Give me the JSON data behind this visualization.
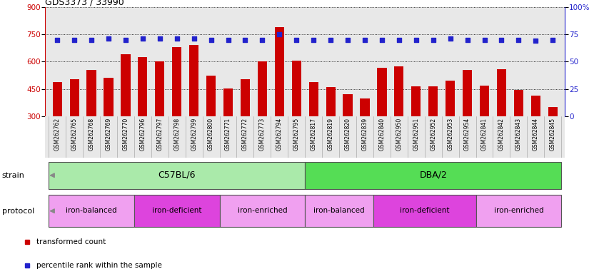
{
  "title": "GDS3373 / 33990",
  "samples": [
    "GSM262762",
    "GSM262765",
    "GSM262768",
    "GSM262769",
    "GSM262770",
    "GSM262796",
    "GSM262797",
    "GSM262798",
    "GSM262799",
    "GSM262800",
    "GSM262771",
    "GSM262772",
    "GSM262773",
    "GSM262794",
    "GSM262795",
    "GSM262817",
    "GSM262819",
    "GSM262820",
    "GSM262839",
    "GSM262840",
    "GSM262950",
    "GSM262951",
    "GSM262952",
    "GSM262953",
    "GSM262954",
    "GSM262841",
    "GSM262842",
    "GSM262843",
    "GSM262844",
    "GSM262845"
  ],
  "bar_values": [
    490,
    505,
    555,
    510,
    640,
    625,
    600,
    680,
    690,
    525,
    455,
    505,
    600,
    790,
    605,
    490,
    460,
    420,
    400,
    565,
    575,
    465,
    465,
    495,
    555,
    470,
    560,
    445,
    415,
    350
  ],
  "percentile_values": [
    70,
    70,
    70,
    71,
    70,
    71,
    71,
    71,
    71,
    70,
    70,
    70,
    70,
    75,
    70,
    70,
    70,
    70,
    70,
    70,
    70,
    70,
    70,
    71,
    70,
    70,
    70,
    70,
    69,
    70
  ],
  "bar_color": "#cc0000",
  "dot_color": "#2222cc",
  "bg_color": "#e8e8e8",
  "ylim_left": [
    300,
    900
  ],
  "ylim_right": [
    0,
    100
  ],
  "yticks_left": [
    300,
    450,
    600,
    750,
    900
  ],
  "yticks_right": [
    0,
    25,
    50,
    75,
    100
  ],
  "strain_groups": [
    {
      "label": "C57BL/6",
      "start": 0,
      "end": 15,
      "color": "#aaeaaa"
    },
    {
      "label": "DBA/2",
      "start": 15,
      "end": 30,
      "color": "#55dd55"
    }
  ],
  "protocol_groups": [
    {
      "label": "iron-balanced",
      "start": 0,
      "end": 5,
      "color": "#f0a0f0"
    },
    {
      "label": "iron-deficient",
      "start": 5,
      "end": 10,
      "color": "#dd44dd"
    },
    {
      "label": "iron-enriched",
      "start": 10,
      "end": 15,
      "color": "#f0a0f0"
    },
    {
      "label": "iron-balanced",
      "start": 15,
      "end": 19,
      "color": "#f0a0f0"
    },
    {
      "label": "iron-deficient",
      "start": 19,
      "end": 25,
      "color": "#dd44dd"
    },
    {
      "label": "iron-enriched",
      "start": 25,
      "end": 30,
      "color": "#f0a0f0"
    }
  ],
  "legend_red_label": "transformed count",
  "legend_blue_label": "percentile rank within the sample"
}
